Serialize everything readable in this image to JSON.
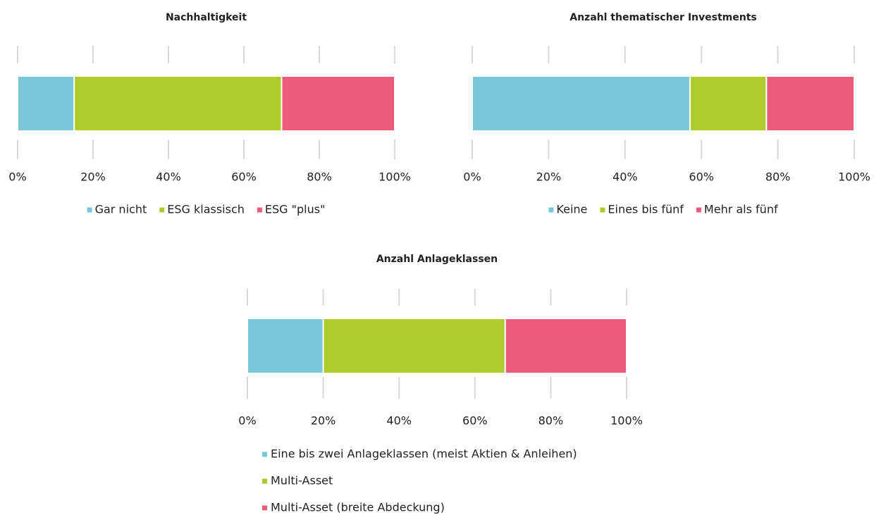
{
  "chart_data": [
    {
      "type": "bar",
      "orientation": "horizontal",
      "stacked": true,
      "title": "Nachhaltigkeit",
      "categories": [
        null
      ],
      "series": [
        {
          "name": "Gar nicht",
          "color": "#7ac6d9",
          "values": [
            15
          ]
        },
        {
          "name": "ESG klassisch",
          "color": "#aecb2b",
          "values": [
            55
          ]
        },
        {
          "name": "ESG \"plus\"",
          "color": "#ec5b79",
          "values": [
            30
          ]
        }
      ],
      "xlim": [
        0,
        100
      ],
      "xticks": [
        {
          "value": 0,
          "label": "0%"
        },
        {
          "value": 20,
          "label": "20%"
        },
        {
          "value": 40,
          "label": "40%"
        },
        {
          "value": 60,
          "label": "60%"
        },
        {
          "value": 80,
          "label": "80%"
        },
        {
          "value": 100,
          "label": "100%"
        }
      ],
      "grid": true,
      "legend": "bottom",
      "legend_orientation": "horizontal"
    },
    {
      "type": "bar",
      "orientation": "horizontal",
      "stacked": true,
      "title": "Anzahl thematischer Investments",
      "categories": [
        null
      ],
      "series": [
        {
          "name": "Keine",
          "color": "#7ac6d9",
          "values": [
            57
          ]
        },
        {
          "name": "Eines bis fünf",
          "color": "#aecb2b",
          "values": [
            20
          ]
        },
        {
          "name": "Mehr als fünf",
          "color": "#ec5b79",
          "values": [
            23
          ]
        }
      ],
      "xlim": [
        0,
        100
      ],
      "xticks": [
        {
          "value": 0,
          "label": "0%"
        },
        {
          "value": 20,
          "label": "20%"
        },
        {
          "value": 40,
          "label": "40%"
        },
        {
          "value": 60,
          "label": "60%"
        },
        {
          "value": 80,
          "label": "80%"
        },
        {
          "value": 100,
          "label": "100%"
        }
      ],
      "grid": true,
      "legend": "bottom",
      "legend_orientation": "horizontal"
    },
    {
      "type": "bar",
      "orientation": "horizontal",
      "stacked": true,
      "title": "Anzahl Anlageklassen",
      "categories": [
        null
      ],
      "series": [
        {
          "name": "Eine bis zwei Anlageklassen (meist Aktien & Anleihen)",
          "color": "#7ac6d9",
          "values": [
            20
          ]
        },
        {
          "name": "Multi-Asset",
          "color": "#aecb2b",
          "values": [
            48
          ]
        },
        {
          "name": "Multi-Asset (breite Abdeckung)",
          "color": "#ec5b79",
          "values": [
            32
          ]
        }
      ],
      "xlim": [
        0,
        100
      ],
      "xticks": [
        {
          "value": 0,
          "label": "0%"
        },
        {
          "value": 20,
          "label": "20%"
        },
        {
          "value": 40,
          "label": "40%"
        },
        {
          "value": 60,
          "label": "60%"
        },
        {
          "value": 80,
          "label": "80%"
        },
        {
          "value": 100,
          "label": "100%"
        }
      ],
      "grid": true,
      "legend": "bottom",
      "legend_orientation": "vertical"
    }
  ]
}
